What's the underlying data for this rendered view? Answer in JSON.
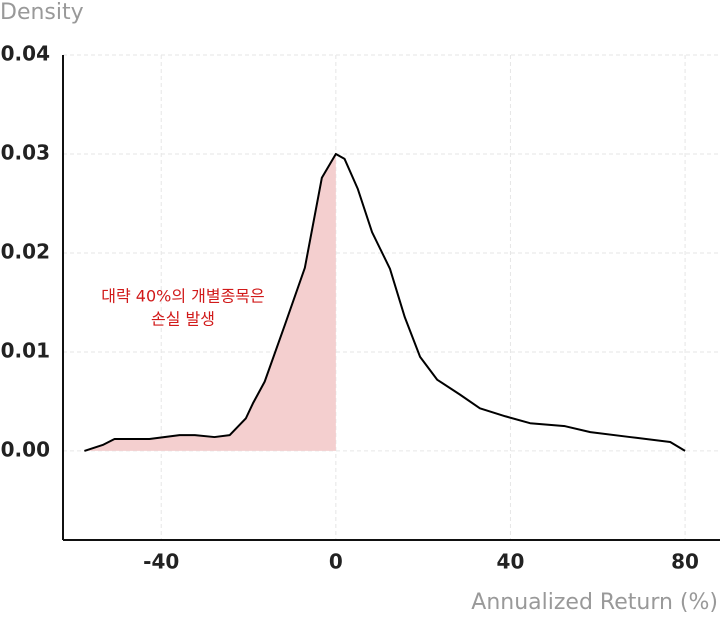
{
  "chart_data": {
    "type": "density",
    "y_label": "Density",
    "x_label": "Annualized Return (%)",
    "annotation": [
      "대략 40%의 개별종목은",
      "손실 발생"
    ],
    "annotation_color": "#d11a1a",
    "x": [
      -57.6,
      -53.4,
      -50.7,
      -42.7,
      -35.8,
      -32.3,
      -27.8,
      -24.3,
      -20.6,
      -19,
      -16.3,
      -11.7,
      -7.1,
      -3.2,
      0,
      2,
      5,
      8.3,
      12.4,
      15.8,
      19.3,
      23.2,
      28.4,
      33,
      38.8,
      44.5,
      52.5,
      58.3,
      67.4,
      76.6,
      80
    ],
    "values": [
      0,
      0.0006,
      0.0012,
      0.0012,
      0.0016,
      0.0016,
      0.0014,
      0.0016,
      0.0033,
      0.0048,
      0.007,
      0.0127,
      0.0185,
      0.0276,
      0.03,
      0.0295,
      0.0265,
      0.0221,
      0.0184,
      0.0135,
      0.0095,
      0.0072,
      0.0057,
      0.0043,
      0.0035,
      0.0028,
      0.0025,
      0.0019,
      0.0014,
      0.0009,
      0
    ],
    "color": "#000000",
    "shade_color": "#f4cfcf",
    "shade_until_x": 0,
    "xlim": [
      -62.5,
      88
    ],
    "ylim": [
      -0.009,
      0.04
    ],
    "xticks": [
      -40,
      0,
      40,
      80
    ],
    "yticks": [
      {
        "value": 0,
        "label": "0.00"
      },
      0.01,
      0.02,
      0.03,
      0.04
    ],
    "grid": true
  }
}
